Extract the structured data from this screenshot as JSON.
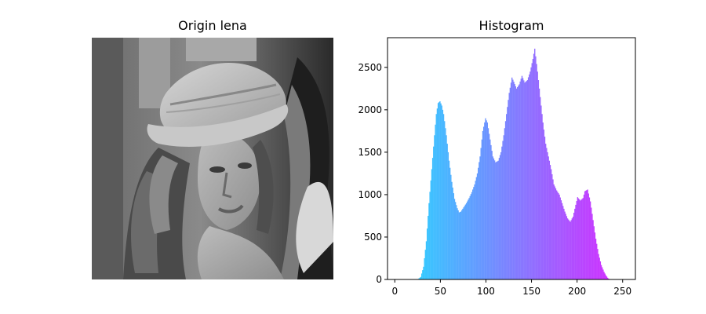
{
  "left_panel": {
    "title": "Origin lena",
    "image": "grayscale portrait photo"
  },
  "chart_data": {
    "type": "bar",
    "title": "Histogram",
    "xlabel": "",
    "ylabel": "",
    "xlim": [
      -8,
      264
    ],
    "ylim": [
      0,
      2850
    ],
    "xticks": [
      0,
      50,
      100,
      150,
      200,
      250
    ],
    "yticks": [
      0,
      500,
      1000,
      1500,
      2000,
      2500
    ],
    "color_start": "#22ddff",
    "color_end": "#dd22ff",
    "keypoints": [
      [
        0,
        0
      ],
      [
        20,
        0
      ],
      [
        25,
        5
      ],
      [
        28,
        30
      ],
      [
        31,
        150
      ],
      [
        34,
        450
      ],
      [
        37,
        900
      ],
      [
        40,
        1300
      ],
      [
        43,
        1700
      ],
      [
        45,
        1950
      ],
      [
        47,
        2080
      ],
      [
        49,
        2100
      ],
      [
        51,
        2050
      ],
      [
        53,
        1950
      ],
      [
        56,
        1700
      ],
      [
        59,
        1400
      ],
      [
        62,
        1150
      ],
      [
        65,
        950
      ],
      [
        68,
        840
      ],
      [
        70,
        790
      ],
      [
        72,
        800
      ],
      [
        75,
        850
      ],
      [
        78,
        900
      ],
      [
        81,
        960
      ],
      [
        84,
        1030
      ],
      [
        87,
        1120
      ],
      [
        90,
        1250
      ],
      [
        93,
        1450
      ],
      [
        96,
        1750
      ],
      [
        99,
        1900
      ],
      [
        101,
        1850
      ],
      [
        104,
        1650
      ],
      [
        107,
        1450
      ],
      [
        110,
        1380
      ],
      [
        113,
        1400
      ],
      [
        116,
        1500
      ],
      [
        119,
        1700
      ],
      [
        122,
        1950
      ],
      [
        125,
        2200
      ],
      [
        128,
        2380
      ],
      [
        130,
        2330
      ],
      [
        133,
        2250
      ],
      [
        136,
        2300
      ],
      [
        139,
        2400
      ],
      [
        142,
        2320
      ],
      [
        145,
        2350
      ],
      [
        148,
        2450
      ],
      [
        151,
        2600
      ],
      [
        153,
        2720
      ],
      [
        156,
        2450
      ],
      [
        159,
        2150
      ],
      [
        162,
        1850
      ],
      [
        165,
        1600
      ],
      [
        168,
        1450
      ],
      [
        171,
        1300
      ],
      [
        174,
        1120
      ],
      [
        177,
        1050
      ],
      [
        180,
        1000
      ],
      [
        183,
        900
      ],
      [
        186,
        800
      ],
      [
        189,
        720
      ],
      [
        192,
        680
      ],
      [
        195,
        740
      ],
      [
        198,
        880
      ],
      [
        200,
        970
      ],
      [
        203,
        930
      ],
      [
        206,
        960
      ],
      [
        208,
        1040
      ],
      [
        211,
        1060
      ],
      [
        214,
        920
      ],
      [
        217,
        700
      ],
      [
        220,
        480
      ],
      [
        223,
        300
      ],
      [
        226,
        170
      ],
      [
        229,
        90
      ],
      [
        231,
        50
      ],
      [
        233,
        20
      ],
      [
        235,
        0
      ],
      [
        255,
        0
      ]
    ]
  }
}
